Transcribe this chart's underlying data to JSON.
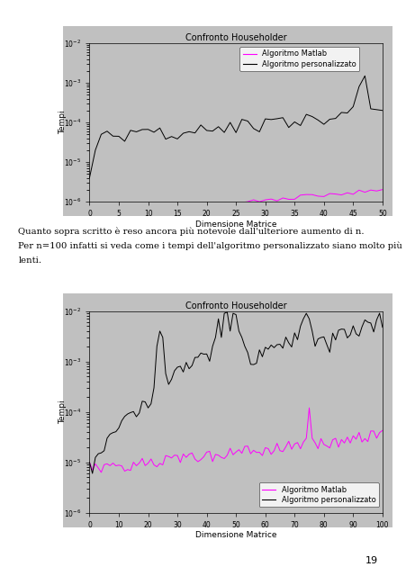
{
  "title": "Confronto Householder",
  "ylabel": "Tempi",
  "xlabel": "Dimensione Matrice",
  "legend1": "Algoritmo Matlab",
  "legend2": "Algoritmo personalizzato",
  "color_matlab": "#FF00FF",
  "color_custom": "#000000",
  "bg_color": "#C0C0C0",
  "plot1": {
    "xlim": [
      0,
      50
    ],
    "ylim": [
      1e-06,
      0.01
    ],
    "xticks": [
      0,
      5,
      10,
      15,
      20,
      25,
      30,
      35,
      40,
      45,
      50
    ],
    "yticks": [
      1e-06,
      1e-05,
      0.0001,
      0.001,
      0.01
    ]
  },
  "plot2": {
    "xlim": [
      0,
      100
    ],
    "ylim": [
      1e-06,
      0.01
    ],
    "xticks": [
      0,
      10,
      20,
      30,
      40,
      50,
      60,
      70,
      80,
      90,
      100
    ],
    "yticks": [
      1e-06,
      1e-05,
      0.0001,
      0.001,
      0.01
    ]
  },
  "text1": "Quanto sopra scritto è reso ancora più notevole dall'ulteriore aumento di n.",
  "text2": "Per n=100 infatti si veda come i tempi dell'algoritmo personalizzato siano molto più",
  "text3": "lenti.",
  "page_number": "19",
  "figsize": [
    4.52,
    6.4
  ],
  "dpi": 100,
  "title_fontsize": 7,
  "axis_label_fontsize": 6.5,
  "tick_fontsize": 5.5,
  "legend_fontsize": 6,
  "text_fontsize": 7.2
}
